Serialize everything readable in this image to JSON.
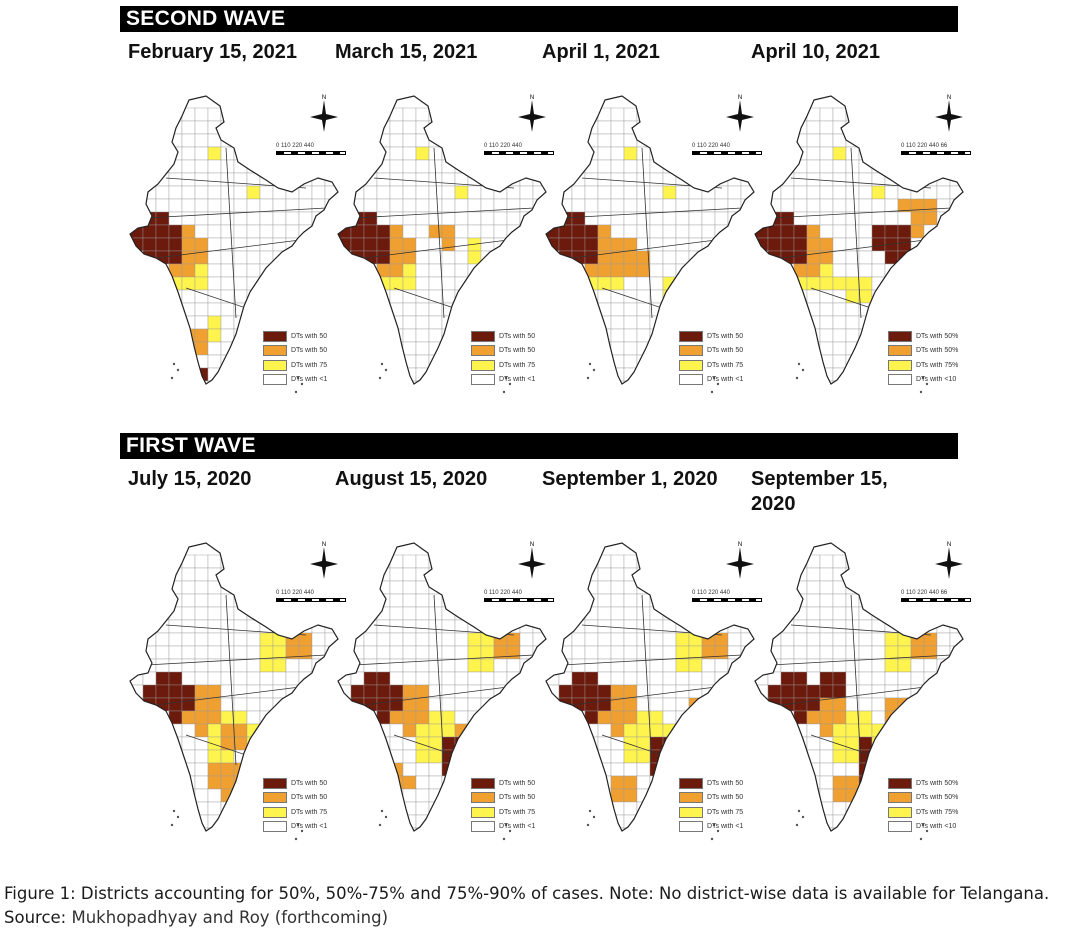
{
  "second_wave": {
    "title": "SECOND WAVE",
    "dates": [
      "February 15, 2021",
      "March 15, 2021",
      "April 1, 2021",
      "April 10, 2021"
    ],
    "legend_labels": [
      [
        "DTs with 50",
        "DTs with 50",
        "DTs with 75",
        "DTs with <1"
      ],
      [
        "DTs with 50",
        "DTs with 50",
        "DTs with 75",
        "DTs with <1"
      ],
      [
        "DTs with 50",
        "DTs with 50",
        "DTs with 75",
        "DTs with <1"
      ],
      [
        "DTs with 50%",
        "DTs with 50%",
        "DTs with 75%",
        "DTs with <10"
      ]
    ],
    "scale_labels": [
      "0 110 220 440",
      "0 110 220 440",
      "0 110 220 440",
      "0 110 220 440 66"
    ]
  },
  "first_wave": {
    "title": "FIRST WAVE",
    "dates": [
      "July 15, 2020",
      "August 15, 2020",
      "September 1, 2020",
      "September 15, 2020"
    ],
    "legend_labels": [
      [
        "DTs with 50",
        "DTs with 50",
        "DTs with 75",
        "DTs with <1"
      ],
      [
        "DTs with 50",
        "DTs with 50",
        "DTs with 75",
        "DTs with <1"
      ],
      [
        "DTs with 50",
        "DTs with 50",
        "DTs with 75",
        "DTs with <1"
      ],
      [
        "DTs with 50%",
        "DTs with 50%",
        "DTs with 75%",
        "DTs with <10"
      ]
    ],
    "scale_labels": [
      "0 110 220 440",
      "0 110 220 440",
      "0 110 220 440",
      "0 110 220 440 66"
    ]
  },
  "legend_colors": [
    "#6b1a0c",
    "#f0a030",
    "#fff34d",
    "#ffffff"
  ],
  "compass_label": "N",
  "caption": {
    "line1": "Figure 1: Districts accounting for 50%, 50%-75% and 75%-90% of cases. Note: No district-wise data is available for Telangana.",
    "source_label": "Source:",
    "source_text": "Mukhopadhyay and Roy (forthcoming)"
  }
}
